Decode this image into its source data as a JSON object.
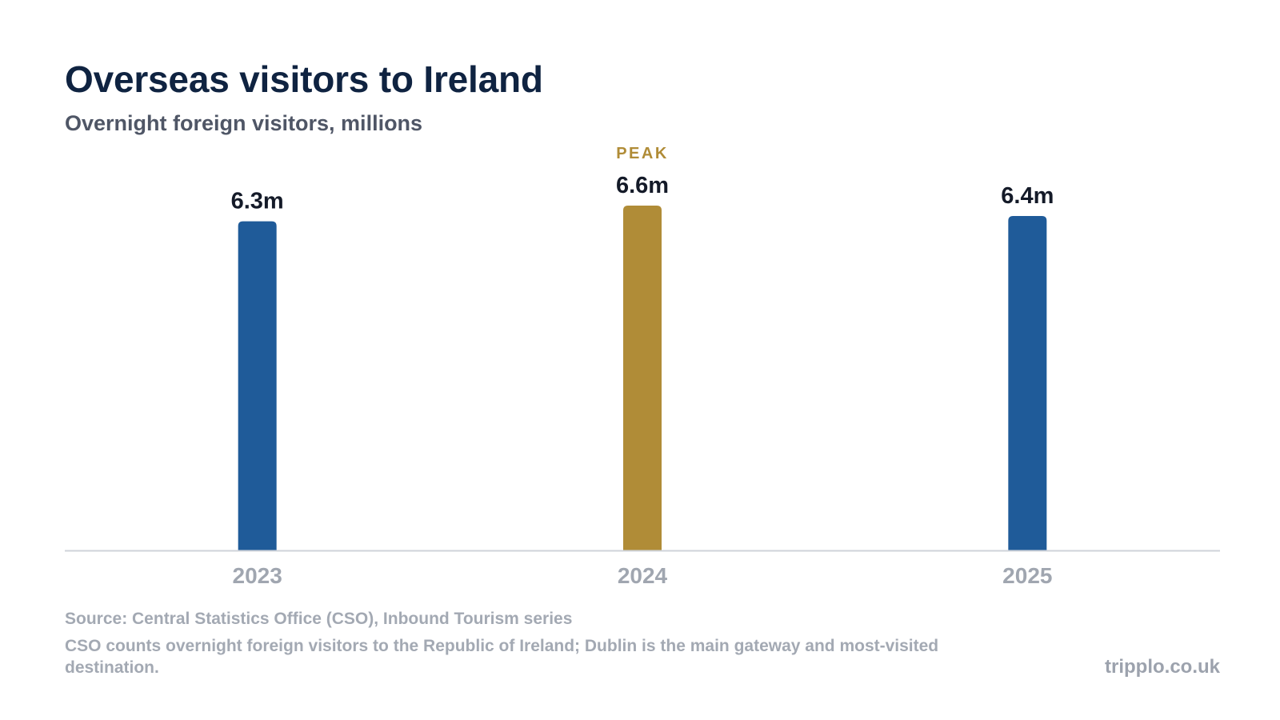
{
  "title": "Overseas visitors to Ireland",
  "subtitle": "Overnight foreign visitors, millions",
  "source": "Source: Central Statistics Office (CSO), Inbound Tourism series",
  "note": "CSO counts overnight foreign visitors to the Republic of Ireland; Dublin is the main gateway and most-visited destination.",
  "brand": "tripplo.co.uk",
  "colors": {
    "bar": "#1f5b99",
    "highlight": "#b08c37",
    "axis": "#cfd3d9",
    "value_label": "#141a28",
    "tick_label": "#a0a6b0"
  },
  "chart_data": {
    "type": "bar",
    "title": "Overseas visitors to Ireland",
    "subtitle": "Overnight foreign visitors, millions",
    "categories": [
      "2023",
      "2024",
      "2025"
    ],
    "values": [
      6.3,
      6.6,
      6.4
    ],
    "data_labels": [
      "6.3m",
      "6.6m",
      "6.4m"
    ],
    "highlight": {
      "category": "2024",
      "label": "PEAK"
    },
    "ylim": [
      0,
      6.6
    ],
    "grid": false,
    "legend": "none"
  }
}
